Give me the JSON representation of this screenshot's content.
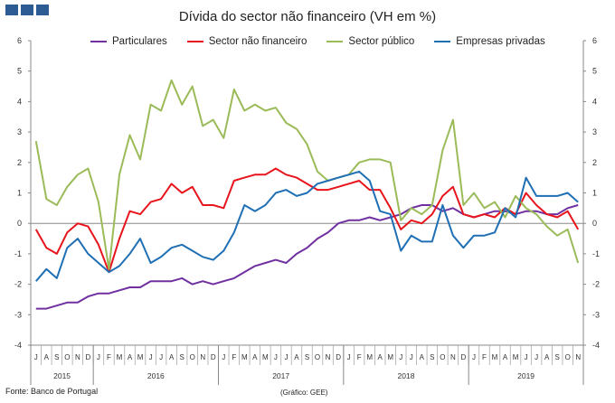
{
  "chart_data": {
    "type": "line",
    "title": "Dívida do sector não financeiro (VH em %)",
    "ylim": [
      -4,
      6
    ],
    "yticks": [
      -4,
      -3,
      -2,
      -1,
      0,
      1,
      2,
      3,
      4,
      5,
      6
    ],
    "grid": false,
    "legend_position": "top",
    "x": [
      "J",
      "A",
      "S",
      "O",
      "N",
      "D",
      "J",
      "F",
      "M",
      "A",
      "M",
      "J",
      "J",
      "A",
      "S",
      "O",
      "N",
      "D",
      "J",
      "F",
      "M",
      "A",
      "M",
      "J",
      "J",
      "A",
      "S",
      "O",
      "N",
      "D",
      "J",
      "F",
      "M",
      "A",
      "M",
      "J",
      "J",
      "A",
      "S",
      "O",
      "N",
      "D",
      "J",
      "F",
      "M",
      "A",
      "M",
      "J",
      "J",
      "A",
      "S",
      "O",
      "N"
    ],
    "year_groups": [
      {
        "label": "2015",
        "count": 6
      },
      {
        "label": "2016",
        "count": 12
      },
      {
        "label": "2017",
        "count": 12
      },
      {
        "label": "2018",
        "count": 12
      },
      {
        "label": "2019",
        "count": 11
      }
    ],
    "series": [
      {
        "name": "Particulares",
        "color": "#7030a0",
        "values": [
          -2.8,
          -2.8,
          -2.7,
          -2.6,
          -2.6,
          -2.4,
          -2.3,
          -2.3,
          -2.2,
          -2.1,
          -2.1,
          -1.9,
          -1.9,
          -1.9,
          -1.8,
          -2.0,
          -1.9,
          -2.0,
          -1.9,
          -1.8,
          -1.6,
          -1.4,
          -1.3,
          -1.2,
          -1.3,
          -1.0,
          -0.8,
          -0.5,
          -0.3,
          0.0,
          0.1,
          0.1,
          0.2,
          0.1,
          0.2,
          0.3,
          0.5,
          0.6,
          0.6,
          0.4,
          0.5,
          0.3,
          0.2,
          0.3,
          0.4,
          0.4,
          0.3,
          0.4,
          0.4,
          0.3,
          0.3,
          0.5,
          0.6
        ]
      },
      {
        "name": "Sector não financeiro",
        "color": "#e8141c",
        "values": [
          -0.2,
          -0.8,
          -1.0,
          -0.3,
          0.0,
          -0.1,
          -0.7,
          -1.6,
          -0.5,
          0.4,
          0.3,
          0.7,
          0.8,
          1.3,
          1.0,
          1.2,
          0.6,
          0.6,
          0.5,
          1.4,
          1.5,
          1.6,
          1.6,
          1.8,
          1.6,
          1.5,
          1.3,
          1.1,
          1.1,
          1.2,
          1.3,
          1.4,
          1.1,
          1.1,
          0.5,
          -0.2,
          0.1,
          0.0,
          0.3,
          0.9,
          1.2,
          0.3,
          0.2,
          0.3,
          0.2,
          0.5,
          0.3,
          1.0,
          0.6,
          0.3,
          0.2,
          0.4,
          -0.2
        ]
      },
      {
        "name": "Sector público",
        "color": "#9bbb59",
        "values": [
          2.7,
          0.8,
          0.6,
          1.2,
          1.6,
          1.8,
          0.7,
          -1.5,
          1.6,
          2.9,
          2.1,
          3.9,
          3.7,
          4.7,
          3.9,
          4.5,
          3.2,
          3.4,
          2.8,
          4.4,
          3.7,
          3.9,
          3.7,
          3.8,
          3.3,
          3.1,
          2.6,
          1.7,
          1.4,
          1.5,
          1.6,
          2.0,
          2.1,
          2.1,
          2.0,
          0.1,
          0.5,
          0.3,
          0.6,
          2.4,
          3.4,
          0.6,
          1.0,
          0.5,
          0.7,
          0.2,
          0.9,
          0.5,
          0.3,
          -0.1,
          -0.4,
          -0.2,
          -1.3
        ]
      },
      {
        "name": "Empresas privadas",
        "color": "#1f6fb4",
        "values": [
          -1.9,
          -1.5,
          -1.8,
          -0.8,
          -0.5,
          -1.0,
          -1.3,
          -1.6,
          -1.4,
          -1.0,
          -0.5,
          -1.3,
          -1.1,
          -0.8,
          -0.7,
          -0.9,
          -1.1,
          -1.2,
          -0.9,
          -0.3,
          0.6,
          0.4,
          0.6,
          1.0,
          1.1,
          0.9,
          1.0,
          1.3,
          1.4,
          1.5,
          1.6,
          1.7,
          1.4,
          0.4,
          0.3,
          -0.9,
          -0.4,
          -0.6,
          -0.6,
          0.6,
          -0.4,
          -0.8,
          -0.4,
          -0.4,
          -0.3,
          0.5,
          0.2,
          1.5,
          0.9,
          0.9,
          0.9,
          1.0,
          0.7
        ]
      }
    ]
  },
  "header": {
    "title": "Dívida do sector não financeiro (VH em %)"
  },
  "footer": {
    "source": "Fonte: Banco de Portugal",
    "credit": "(Gráfico: GEE)"
  }
}
